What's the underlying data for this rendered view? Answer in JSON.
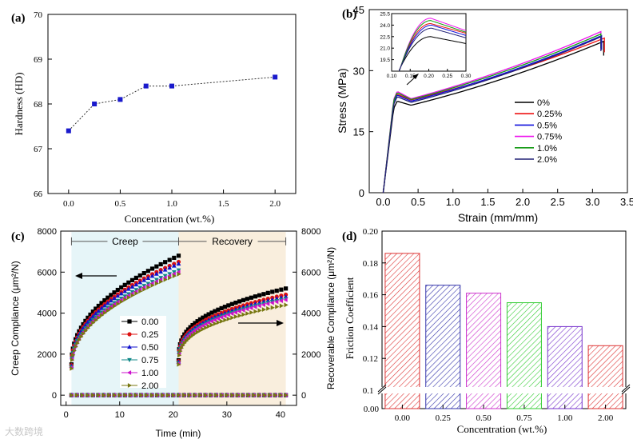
{
  "panels": {
    "a": {
      "label": "(a)"
    },
    "b": {
      "label": "(b)"
    },
    "c": {
      "label": "(c)"
    },
    "d": {
      "label": "(d)"
    }
  },
  "watermark": "大数跨境",
  "chart_data": [
    {
      "id": "a",
      "type": "line",
      "xlabel": "Concentration (wt.%)",
      "ylabel": "Hardness (HD)",
      "xlim": [
        -0.2,
        2.2
      ],
      "ylim": [
        66,
        70
      ],
      "xticks": [
        "0.0",
        "0.5",
        "1.0",
        "1.5",
        "2.0"
      ],
      "yticks": [
        "66",
        "67",
        "68",
        "69",
        "70"
      ],
      "x": [
        0,
        0.25,
        0.5,
        0.75,
        1.0,
        2.0
      ],
      "y": [
        67.4,
        68.0,
        68.1,
        68.4,
        68.4,
        68.6
      ],
      "marker_color": "#1a1acc"
    },
    {
      "id": "b",
      "type": "line",
      "xlabel": "Strain (mm/mm)",
      "ylabel": "Stress (MPa)",
      "xlim": [
        -0.2,
        3.5
      ],
      "ylim": [
        0,
        45
      ],
      "xticks": [
        "0.0",
        "0.5",
        "1.0",
        "1.5",
        "2.0",
        "2.5",
        "3.0",
        "3.5"
      ],
      "yticks": [
        "0",
        "15",
        "30",
        "45"
      ],
      "legend_position": "right",
      "series": [
        {
          "name": "0%",
          "color": "#000000",
          "peak": 22.5,
          "min": 21.5,
          "end_x": 3.16,
          "end_y": 37.2
        },
        {
          "name": "0.25%",
          "color": "#ee1111",
          "peak": 24.2,
          "min": 22.8,
          "end_x": 3.17,
          "end_y": 38.0
        },
        {
          "name": "0.5%",
          "color": "#1111dd",
          "peak": 24.0,
          "min": 22.5,
          "end_x": 3.13,
          "end_y": 38.6
        },
        {
          "name": "0.75%",
          "color": "#ee11ee",
          "peak": 24.9,
          "min": 23.1,
          "end_x": 3.12,
          "end_y": 39.6
        },
        {
          "name": "1.0%",
          "color": "#119911",
          "peak": 24.6,
          "min": 22.9,
          "end_x": 3.12,
          "end_y": 39.0
        },
        {
          "name": "2.0%",
          "color": "#222277",
          "peak": 23.6,
          "min": 22.2,
          "end_x": 3.12,
          "end_y": 38.3
        }
      ],
      "inset": {
        "xlim": [
          0.1,
          0.3
        ],
        "ylim": [
          18,
          25.5
        ],
        "xticks": [
          "0.10",
          "0.15",
          "0.20",
          "0.25",
          "0.30"
        ],
        "yticks": [
          "19.5",
          "21.0",
          "22.5",
          "24.0",
          "25.5"
        ]
      }
    },
    {
      "id": "c",
      "type": "scatter",
      "xlabel": "Time (min)",
      "ylabel_left": "Creep Compliance (μm²/N)",
      "ylabel_right": "Recoverable Compliance (μm²/N)",
      "xlim": [
        -1,
        43
      ],
      "ylim": [
        -500,
        8000
      ],
      "xticks": [
        "0",
        "10",
        "20",
        "30",
        "40"
      ],
      "yticks": [
        "0",
        "2000",
        "4000",
        "6000",
        "8000"
      ],
      "region_labels": [
        "Creep",
        "Recovery"
      ],
      "creep_window": [
        1,
        21
      ],
      "recovery_window": [
        21,
        41
      ],
      "series": [
        {
          "name": "0.00",
          "color": "#000000",
          "marker": "square",
          "creep_end": 6800,
          "rec_end": 5200
        },
        {
          "name": "0.25",
          "color": "#dd1111",
          "marker": "circle",
          "creep_end": 6500,
          "rec_end": 4900
        },
        {
          "name": "0.50",
          "color": "#1111cc",
          "marker": "triangle-up",
          "creep_end": 6400,
          "rec_end": 4800
        },
        {
          "name": "0.75",
          "color": "#118888",
          "marker": "triangle-down",
          "creep_end": 6100,
          "rec_end": 4700
        },
        {
          "name": "1.00",
          "color": "#cc11cc",
          "marker": "triangle-left",
          "creep_end": 6000,
          "rec_end": 4650
        },
        {
          "name": "2.00",
          "color": "#777711",
          "marker": "triangle-right",
          "creep_end": 5900,
          "rec_end": 4400
        }
      ]
    },
    {
      "id": "d",
      "type": "bar",
      "xlabel": "Concentration (wt.%)",
      "ylabel": "Friction Coefficient",
      "categories": [
        "0.00",
        "0.25",
        "0.50",
        "0.75",
        "1.00",
        "2.00"
      ],
      "values": [
        0.186,
        0.166,
        0.161,
        0.155,
        0.14,
        0.128
      ],
      "colors": [
        "#dd3333",
        "#3333aa",
        "#cc33cc",
        "#33cc33",
        "#7733cc",
        "#dd3333"
      ],
      "ylim": [
        0.1,
        0.2
      ],
      "yticks": [
        "0.10",
        "0.12",
        "0.14",
        "0.16",
        "0.18",
        "0.20"
      ],
      "axis_break_label": "0.00"
    }
  ]
}
